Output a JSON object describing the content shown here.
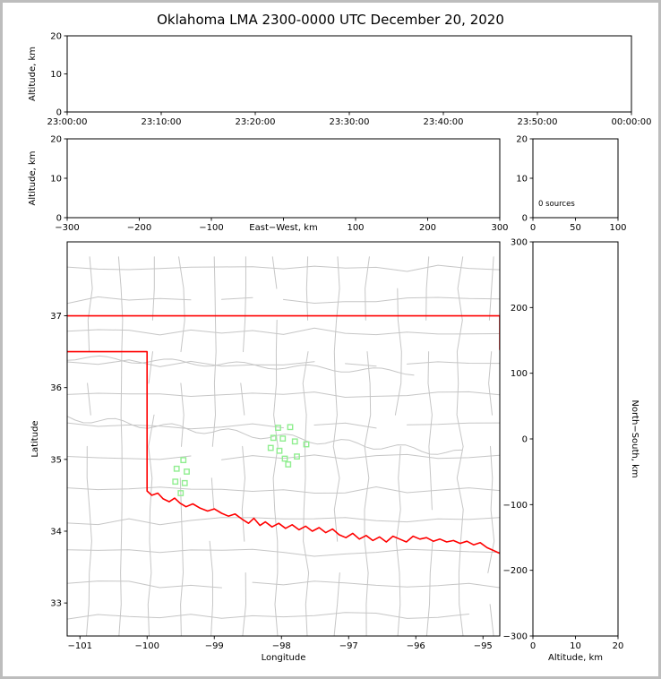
{
  "title": "Oklahoma LMA 2300-0000 UTC December 20, 2020",
  "colors": {
    "panel_border": "#000000",
    "tick_label": "#000000",
    "county_line": "#c6c6c6",
    "state_border": "#ff0000",
    "station_marker": "#90ee90"
  },
  "chart_data": [
    {
      "id": "time_height",
      "type": "scatter",
      "xlabel": "",
      "ylabel": "Altitude, km",
      "xtick_labels": [
        "23:00:00",
        "23:10:00",
        "23:20:00",
        "23:30:00",
        "23:40:00",
        "23:50:00",
        "00:00:00"
      ],
      "ylim": [
        0,
        20
      ],
      "yticks": [
        0,
        10,
        20
      ],
      "points": []
    },
    {
      "id": "ew_height",
      "type": "scatter",
      "xlabel": "East-West, km",
      "ylabel": "Altitude, km",
      "xlim": [
        -300,
        300
      ],
      "xticks": [
        -300,
        -200,
        -100,
        0,
        100,
        200,
        300
      ],
      "ylim": [
        0,
        20
      ],
      "yticks": [
        0,
        10,
        20
      ],
      "points": []
    },
    {
      "id": "altitude_histogram",
      "type": "bar",
      "annotation": "0 sources",
      "xlim": [
        0,
        100
      ],
      "xticks": [
        0,
        50,
        100
      ],
      "ylim": [
        0,
        20
      ],
      "yticks": [
        0,
        10,
        20
      ],
      "values": []
    },
    {
      "id": "plan_view",
      "type": "scatter",
      "xlabel": "Longitude",
      "ylabel": "Latitude",
      "xlim": [
        -101.19,
        -94.75
      ],
      "xticks": [
        -101,
        -100,
        -99,
        -98,
        -97,
        -96,
        -95
      ],
      "ylim": [
        32.54,
        38.03
      ],
      "yticks": [
        33,
        34,
        35,
        36,
        37
      ],
      "stations": [
        [
          -98.05,
          35.44
        ],
        [
          -97.87,
          35.45
        ],
        [
          -98.12,
          35.3
        ],
        [
          -97.98,
          35.29
        ],
        [
          -97.8,
          35.25
        ],
        [
          -98.16,
          35.16
        ],
        [
          -98.03,
          35.12
        ],
        [
          -97.95,
          35.01
        ],
        [
          -97.77,
          35.04
        ],
        [
          -97.63,
          35.21
        ],
        [
          -97.9,
          34.93
        ],
        [
          -99.46,
          34.99
        ],
        [
          -99.56,
          34.87
        ],
        [
          -99.41,
          34.83
        ],
        [
          -99.58,
          34.69
        ],
        [
          -99.44,
          34.67
        ],
        [
          -99.5,
          34.53
        ]
      ],
      "state_border": {
        "north": [
          [
            -101.19,
            37.0
          ],
          [
            -94.75,
            37.0
          ]
        ],
        "east_edge": [
          [
            -94.75,
            37.0
          ],
          [
            -94.75,
            36.53
          ]
        ],
        "main": [
          [
            -101.19,
            36.5
          ],
          [
            -100.0,
            36.5
          ],
          [
            -100.0,
            34.56
          ],
          [
            -99.93,
            34.5
          ],
          [
            -99.84,
            34.53
          ],
          [
            -99.76,
            34.45
          ],
          [
            -99.67,
            34.41
          ],
          [
            -99.59,
            34.46
          ],
          [
            -99.51,
            34.39
          ],
          [
            -99.42,
            34.34
          ],
          [
            -99.32,
            34.38
          ],
          [
            -99.21,
            34.32
          ],
          [
            -99.1,
            34.28
          ],
          [
            -99.0,
            34.31
          ],
          [
            -98.89,
            34.25
          ],
          [
            -98.79,
            34.21
          ],
          [
            -98.69,
            34.24
          ],
          [
            -98.59,
            34.17
          ],
          [
            -98.49,
            34.11
          ],
          [
            -98.41,
            34.18
          ],
          [
            -98.32,
            34.08
          ],
          [
            -98.24,
            34.13
          ],
          [
            -98.14,
            34.06
          ],
          [
            -98.04,
            34.11
          ],
          [
            -97.94,
            34.04
          ],
          [
            -97.84,
            34.09
          ],
          [
            -97.74,
            34.02
          ],
          [
            -97.64,
            34.07
          ],
          [
            -97.54,
            34.0
          ],
          [
            -97.44,
            34.05
          ],
          [
            -97.34,
            33.98
          ],
          [
            -97.24,
            34.03
          ],
          [
            -97.14,
            33.95
          ],
          [
            -97.04,
            33.91
          ],
          [
            -96.94,
            33.97
          ],
          [
            -96.84,
            33.89
          ],
          [
            -96.74,
            33.94
          ],
          [
            -96.64,
            33.87
          ],
          [
            -96.54,
            33.92
          ],
          [
            -96.44,
            33.85
          ],
          [
            -96.34,
            33.93
          ],
          [
            -96.24,
            33.89
          ],
          [
            -96.14,
            33.85
          ],
          [
            -96.04,
            33.93
          ],
          [
            -95.94,
            33.89
          ],
          [
            -95.84,
            33.91
          ],
          [
            -95.74,
            33.86
          ],
          [
            -95.64,
            33.89
          ],
          [
            -95.54,
            33.85
          ],
          [
            -95.44,
            33.87
          ],
          [
            -95.34,
            33.83
          ],
          [
            -95.24,
            33.86
          ],
          [
            -95.14,
            33.81
          ],
          [
            -95.04,
            33.84
          ],
          [
            -94.94,
            33.77
          ],
          [
            -94.84,
            33.73
          ],
          [
            -94.75,
            33.69
          ]
        ]
      }
    },
    {
      "id": "ns_height",
      "type": "scatter",
      "xlabel": "Altitude, km",
      "ylabel": "North-South, km",
      "xlim": [
        0,
        20
      ],
      "xticks": [
        0,
        10,
        20
      ],
      "ylim": [
        -300,
        300
      ],
      "yticks": [
        -300,
        -200,
        -100,
        0,
        100,
        200,
        300
      ],
      "points": []
    }
  ]
}
